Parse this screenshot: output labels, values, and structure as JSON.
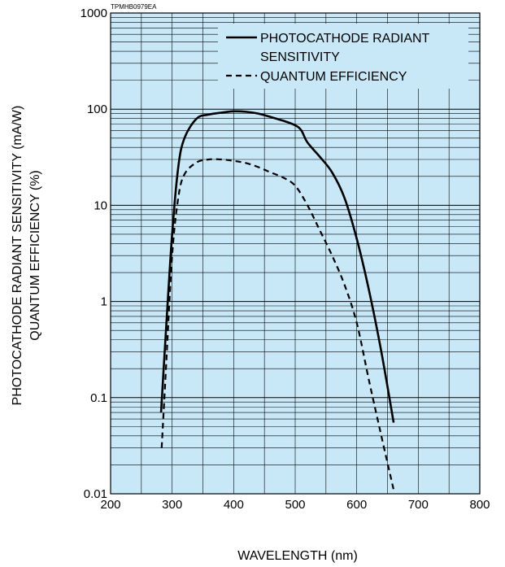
{
  "figure_code": "TPMHB0979EA",
  "chart_data": {
    "type": "line",
    "title": "",
    "xlabel": "WAVELENGTH (nm)",
    "ylabel_line1": "PHOTOCATHODE RADIANT SENSITIVITY (mA/W)",
    "ylabel_line2": "QUANTUM EFFICIENCY (%)",
    "xlim": [
      200,
      800
    ],
    "ylim": [
      0.01,
      1000
    ],
    "yscale": "log",
    "x_ticks": [
      "200",
      "300",
      "400",
      "500",
      "600",
      "700",
      "800"
    ],
    "y_ticks": [
      "0.01",
      "0.1",
      "1",
      "10",
      "100",
      "1000"
    ],
    "grid": true,
    "legend_position": "top-right",
    "colors": {
      "plot_background": "#c8e8f8",
      "line": "#000000",
      "grid": "#000000"
    },
    "series": [
      {
        "name": "PHOTOCATHODE RADIANT SENSITIVITY",
        "name_line1": "PHOTOCATHODE RADIANT",
        "name_line2": "SENSITIVITY",
        "style": "solid",
        "x": [
          282,
          290,
          300,
          310,
          320,
          340,
          360,
          380,
          400,
          420,
          440,
          460,
          480,
          500,
          510,
          520,
          540,
          560,
          580,
          600,
          620,
          640,
          660
        ],
        "y": [
          0.07,
          0.5,
          5,
          25,
          50,
          80,
          88,
          92,
          95,
          94,
          90,
          83,
          76,
          68,
          60,
          45,
          32,
          22,
          12,
          4.5,
          1.3,
          0.3,
          0.055
        ]
      },
      {
        "name": "QUANTUM EFFICIENCY",
        "style": "dashed",
        "x": [
          283,
          290,
          300,
          310,
          320,
          340,
          360,
          380,
          400,
          420,
          440,
          460,
          480,
          500,
          520,
          540,
          560,
          580,
          600,
          620,
          640,
          660
        ],
        "y": [
          0.03,
          0.2,
          3,
          12,
          21,
          28,
          30,
          30,
          29,
          27.5,
          25,
          22,
          19.5,
          16,
          10,
          5.5,
          3,
          1.5,
          0.6,
          0.15,
          0.04,
          0.011
        ]
      }
    ]
  }
}
